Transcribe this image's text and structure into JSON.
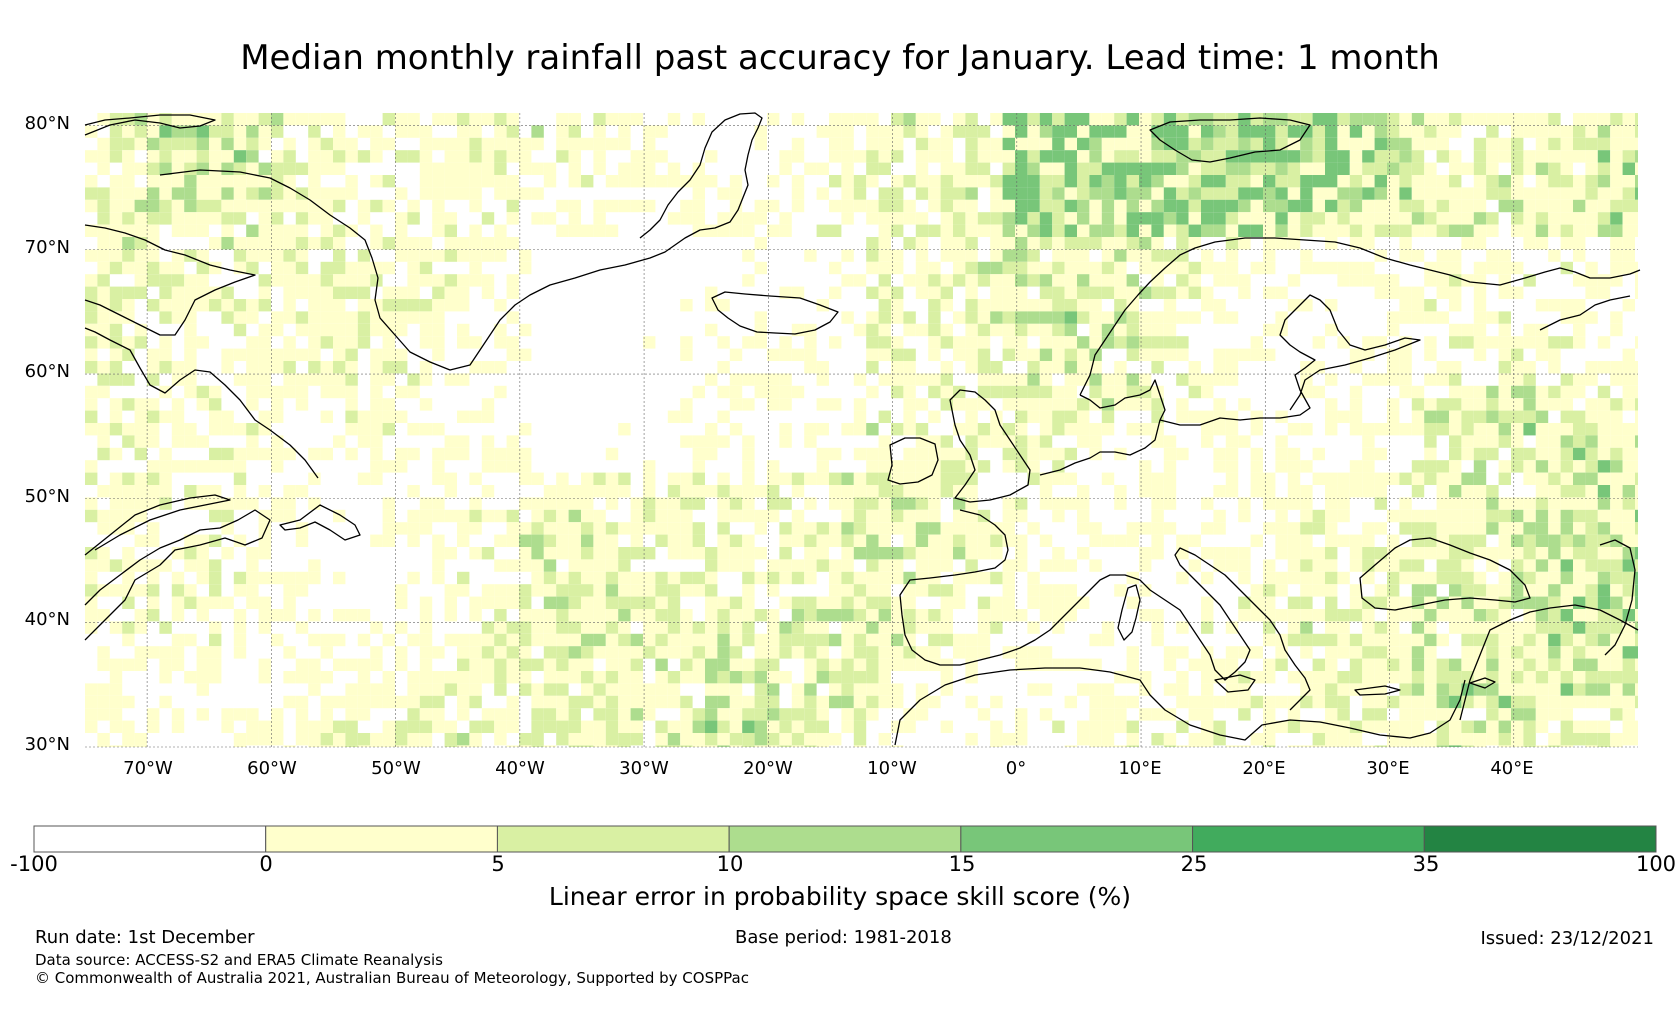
{
  "title": "Median monthly rainfall past accuracy for January. Lead time: 1 month",
  "map": {
    "extent": {
      "lon_min": -75,
      "lon_max": 50,
      "lat_min": 30,
      "lat_max": 81
    },
    "lat_labels": [
      {
        "value": 80,
        "text": "80°N"
      },
      {
        "value": 70,
        "text": "70°N"
      },
      {
        "value": 60,
        "text": "60°N"
      },
      {
        "value": 50,
        "text": "50°N"
      },
      {
        "value": 40,
        "text": "40°N"
      },
      {
        "value": 30,
        "text": "30°N"
      }
    ],
    "lon_labels": [
      {
        "value": -70,
        "text": "70°W"
      },
      {
        "value": -60,
        "text": "60°W"
      },
      {
        "value": -50,
        "text": "50°W"
      },
      {
        "value": -40,
        "text": "40°W"
      },
      {
        "value": -30,
        "text": "30°W"
      },
      {
        "value": -20,
        "text": "20°W"
      },
      {
        "value": -10,
        "text": "10°W"
      },
      {
        "value": 0,
        "text": "0°"
      },
      {
        "value": 10,
        "text": "10°E"
      },
      {
        "value": 20,
        "text": "20°E"
      },
      {
        "value": 30,
        "text": "30°E"
      },
      {
        "value": 40,
        "text": "40°E"
      }
    ],
    "coastline_color": "#000000",
    "gridline_color": "#666666"
  },
  "colorbar": {
    "label": "Linear error in probability space skill score (%)",
    "ticks": [
      "-100",
      "0",
      "5",
      "10",
      "15",
      "25",
      "35",
      "100"
    ],
    "colors": [
      "#ffffff",
      "#ffffcc",
      "#d9f0a3",
      "#addd8e",
      "#78c679",
      "#41ab5d",
      "#238443"
    ]
  },
  "footer": {
    "run_date": "Run date: 1st December",
    "base_period": "Base period: 1981-2018",
    "issued": "Issued: 23/12/2021",
    "data_source": "Data source: ACCESS-S2 and ERA5 Climate Reanalysis",
    "copyright": "© Commonwealth of Australia 2021, Australian Bureau of Meteorology, Supported by COSPPac"
  }
}
